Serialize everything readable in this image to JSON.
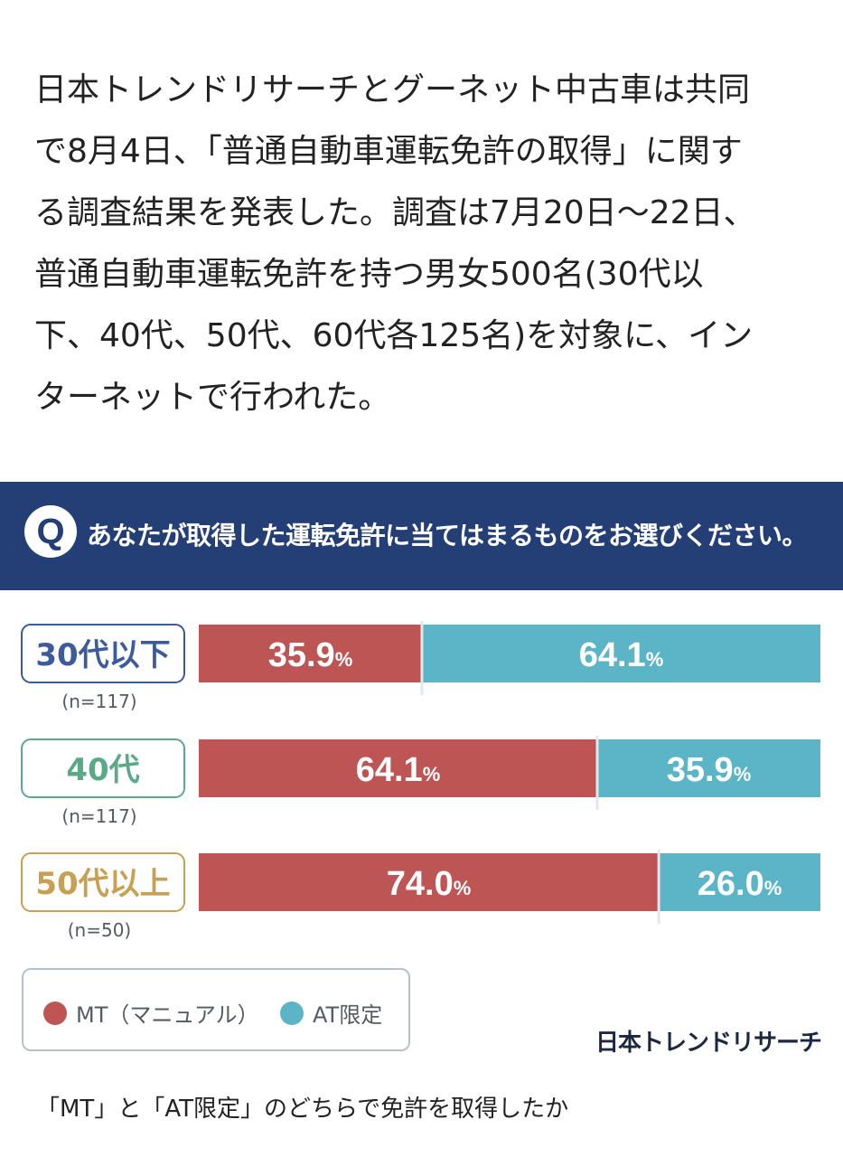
{
  "intro": {
    "lines": [
      "日本トレンドリサーチとグーネット中古車は共同",
      "で8月4日、「普通自動車運転免許の取得」に関す",
      "る調査結果を発表した。調査は7月20日〜22日、",
      "普通自動車運転免許を持つ男女500名(30代以",
      "下、40代、50代、60代各125名)を対象に、イン",
      "ターネットで行われた。"
    ]
  },
  "question": {
    "badge": "Q",
    "text": "あなたが取得した運転免許に当てはまるものをお選びください。"
  },
  "colors": {
    "band": "#243f75",
    "mt": "#bd5555",
    "at": "#5bb5c7",
    "group_30": "#3d5b9c",
    "group_40": "#5aaa8a",
    "group_50": "#c7a052"
  },
  "chart_data": {
    "type": "bar",
    "stacked": true,
    "orientation": "horizontal",
    "categories": [
      "30代以下",
      "40代",
      "50代以上"
    ],
    "sample_sizes": [
      "(n=117)",
      "(n=117)",
      "(n=50)"
    ],
    "series": [
      {
        "name": "MT（マニュアル）",
        "values": [
          35.9,
          64.1,
          74.0
        ]
      },
      {
        "name": "AT限定",
        "values": [
          64.1,
          35.9,
          26.0
        ]
      }
    ],
    "unit": "%",
    "xlim": [
      0,
      100
    ],
    "legend": "bottom-left"
  },
  "legend": {
    "mt_label": "MT（マニュアル）",
    "at_label": "AT限定"
  },
  "logo": "日本トレンドリサーチ",
  "caption": "「MT」と「AT限定」のどちらで免許を取得したか"
}
